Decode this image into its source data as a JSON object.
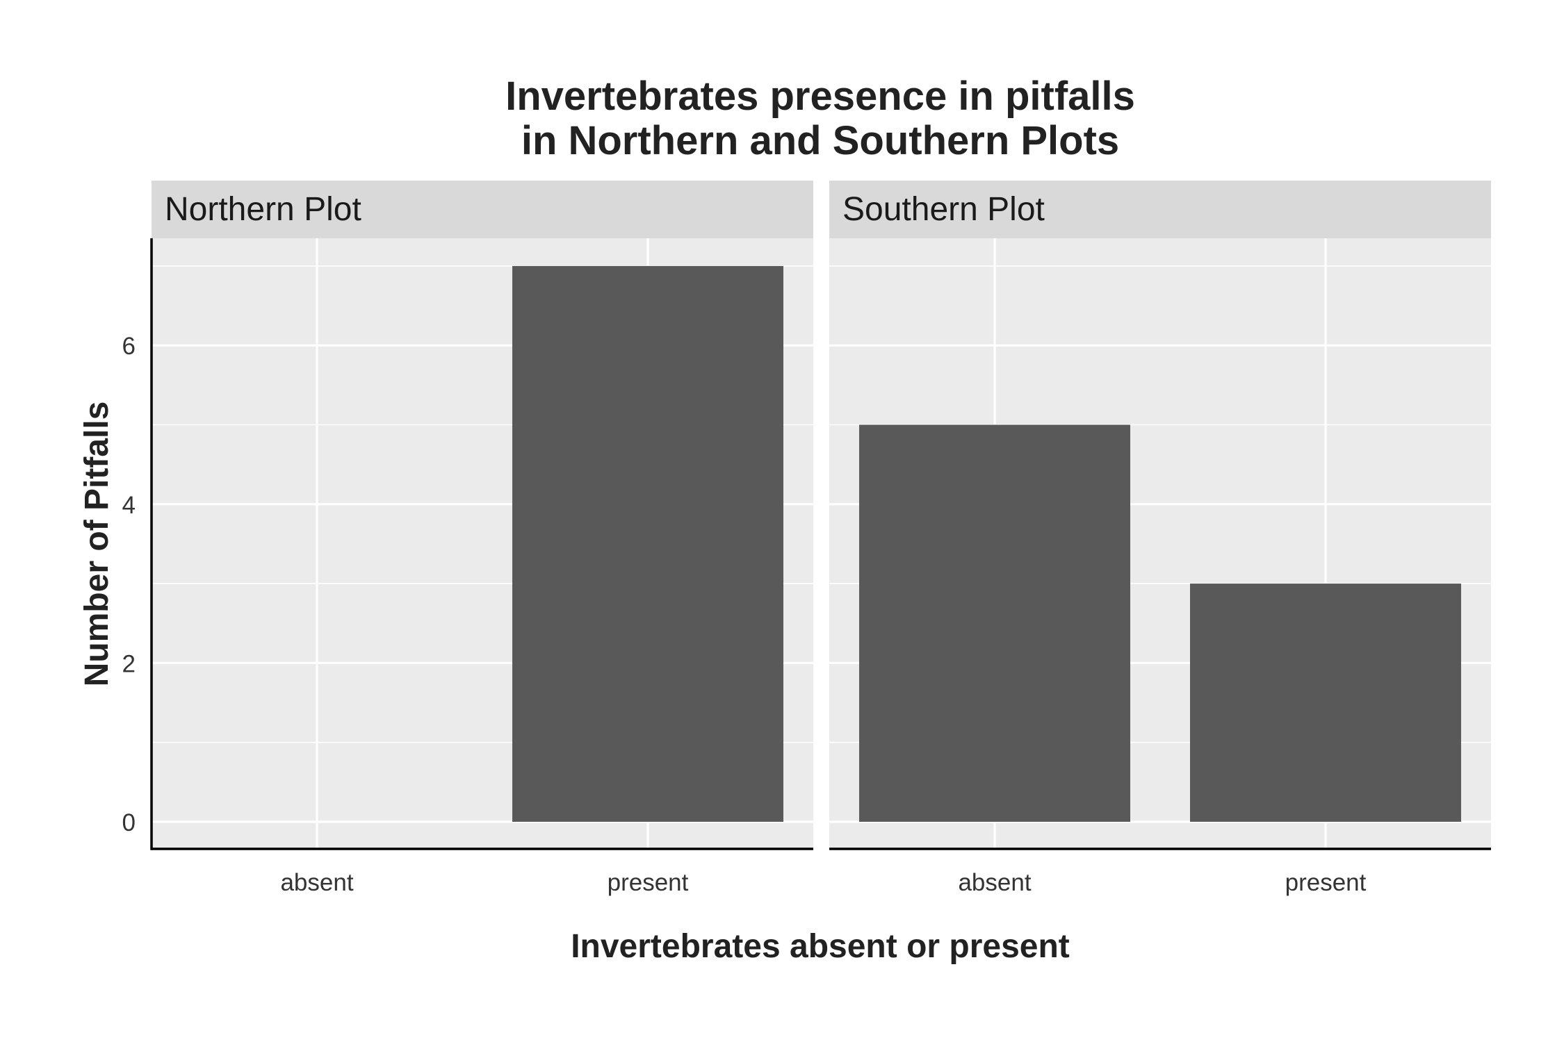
{
  "chart_data": {
    "type": "bar",
    "title_lines": [
      "Invertebrates presence in pitfalls",
      "in Northern and Southern Plots"
    ],
    "xlabel": "Invertebrates absent or present",
    "ylabel": "Number of Pitfalls",
    "categories": [
      "absent",
      "present"
    ],
    "y_ticks": [
      "0",
      "2",
      "4",
      "6"
    ],
    "ylim": [
      0,
      7
    ],
    "grid": true,
    "colors": {
      "bar": "#595959",
      "panel_bg": "#ebebeb",
      "strip_bg": "#d9d9d9",
      "grid": "#ffffff",
      "axis": "#000000"
    },
    "facets": [
      {
        "name": "Northern Plot",
        "values": [
          0,
          7
        ]
      },
      {
        "name": "Southern Plot",
        "values": [
          5,
          3
        ]
      }
    ]
  }
}
